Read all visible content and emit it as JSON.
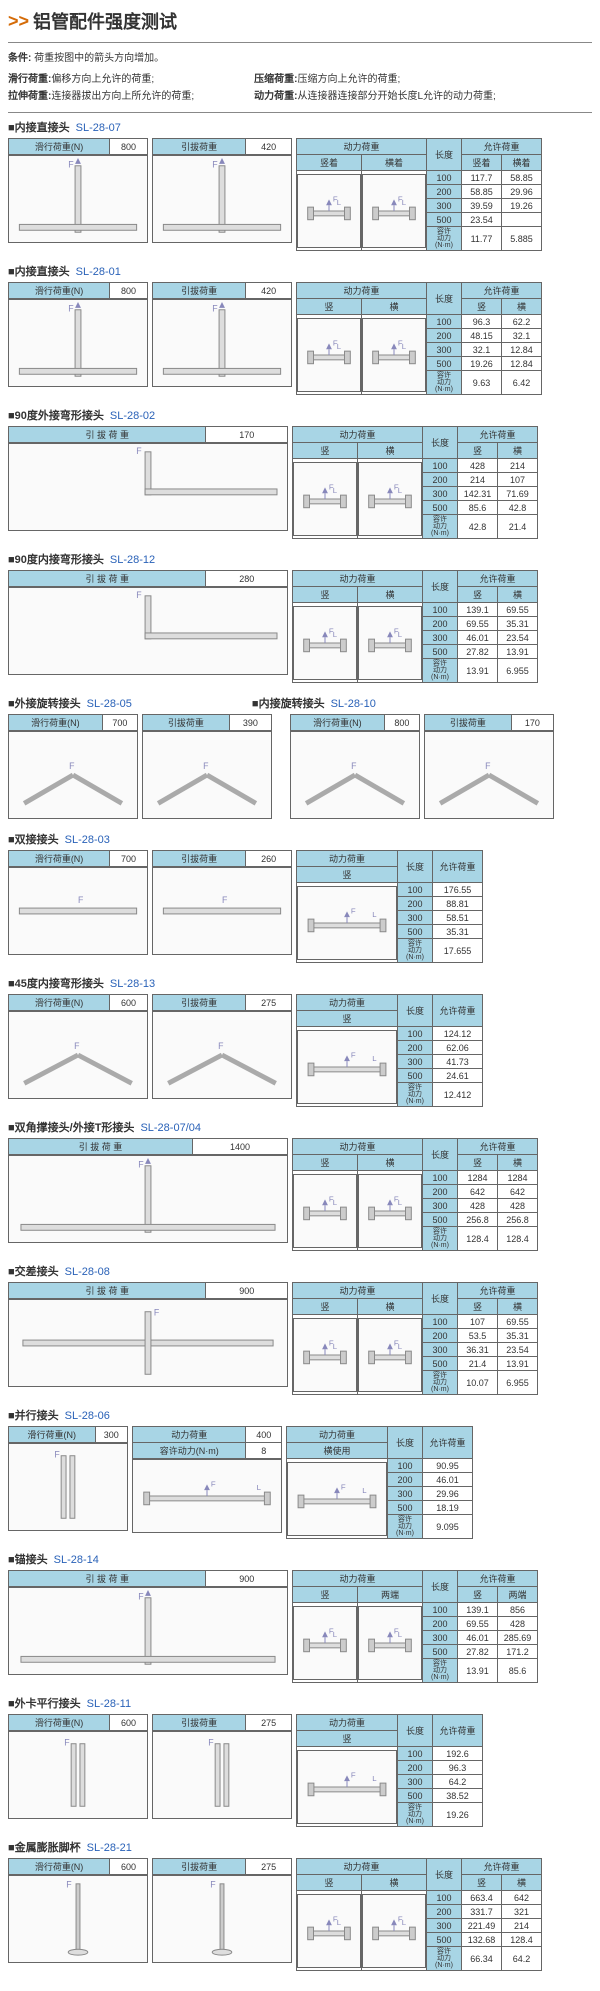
{
  "title": "铝管配件强度测试",
  "condition": {
    "label": "条件:",
    "text": "荷重按图中的箭头方向增加。"
  },
  "definitions": {
    "col1": [
      [
        "滑行荷重:",
        "偏移方向上允许的荷重;"
      ],
      [
        "拉伸荷重:",
        "连接器拔出方向上所允许的荷重;"
      ]
    ],
    "col2": [
      [
        "压缩荷重:",
        "压缩方向上允许的荷重;"
      ],
      [
        "动力荷重:",
        "从连接器连接部分开始长度L允许的动力荷重;"
      ]
    ]
  },
  "sections": [
    {
      "name": "内接直接头",
      "code": "SL-28-07",
      "layout": "A",
      "loads": [
        [
          "滑行荷重(N)",
          "800"
        ],
        [
          "引拔荷重",
          "420"
        ]
      ],
      "dyn": {
        "cols": [
          "竖着",
          "横着"
        ],
        "rows": [
          [
            "100",
            "117.7",
            "58.85"
          ],
          [
            "200",
            "58.85",
            "29.96"
          ],
          [
            "300",
            "39.59",
            "19.26"
          ],
          [
            "500",
            "23.54",
            ""
          ],
          [
            "",
            "11.77",
            "5.885"
          ]
        ]
      }
    },
    {
      "name": "内接直接头",
      "code": "SL-28-01",
      "layout": "A",
      "loads": [
        [
          "滑行荷重(N)",
          "800"
        ],
        [
          "引拔荷重",
          "420"
        ]
      ],
      "dyn": {
        "cols": [
          "竖",
          "横"
        ],
        "rows": [
          [
            "100",
            "96.3",
            "62.2"
          ],
          [
            "200",
            "48.15",
            "32.1"
          ],
          [
            "300",
            "32.1",
            "12.84"
          ],
          [
            "500",
            "19.26",
            "12.84"
          ],
          [
            "",
            "9.63",
            "6.42"
          ]
        ]
      }
    },
    {
      "name": "90度外接弯形接头",
      "code": "SL-28-02",
      "layout": "B",
      "loads": [
        [
          "引 拔 荷 重",
          "170"
        ]
      ],
      "dyn": {
        "cols": [
          "竖",
          "横"
        ],
        "rows": [
          [
            "100",
            "428",
            "214"
          ],
          [
            "200",
            "214",
            "107"
          ],
          [
            "300",
            "142.31",
            "71.69"
          ],
          [
            "500",
            "85.6",
            "42.8"
          ],
          [
            "",
            "42.8",
            "21.4"
          ]
        ]
      }
    },
    {
      "name": "90度内接弯形接头",
      "code": "SL-28-12",
      "layout": "B",
      "loads": [
        [
          "引 拔 荷 重",
          "280"
        ]
      ],
      "dyn": {
        "cols": [
          "竖",
          "横"
        ],
        "rows": [
          [
            "100",
            "139.1",
            "69.55"
          ],
          [
            "200",
            "69.55",
            "35.31"
          ],
          [
            "300",
            "46.01",
            "23.54"
          ],
          [
            "500",
            "27.82",
            "13.91"
          ],
          [
            "",
            "13.91",
            "6.955"
          ]
        ]
      }
    },
    {
      "name": "外接旋转接头",
      "code": "SL-28-05",
      "layout": "C",
      "pair_name": "内接旋转接头",
      "pair_code": "SL-28-10",
      "loads": [
        [
          "滑行荷重(N)",
          "700"
        ],
        [
          "引拔荷重",
          "390"
        ]
      ],
      "loads2": [
        [
          "滑行荷重(N)",
          "800"
        ],
        [
          "引拔荷重",
          "170"
        ]
      ]
    },
    {
      "name": "双接接头",
      "code": "SL-28-03",
      "layout": "D",
      "loads": [
        [
          "滑行荷重(N)",
          "700"
        ],
        [
          "引拔荷重",
          "260"
        ]
      ],
      "dyn": {
        "cols": [
          "竖"
        ],
        "single": true,
        "rows": [
          [
            "100",
            "176.55"
          ],
          [
            "200",
            "88.81"
          ],
          [
            "300",
            "58.51"
          ],
          [
            "500",
            "35.31"
          ],
          [
            "",
            "17.655"
          ]
        ]
      }
    },
    {
      "name": "45度内接弯形接头",
      "code": "SL-28-13",
      "layout": "D",
      "loads": [
        [
          "滑行荷重(N)",
          "600"
        ],
        [
          "引拔荷重",
          "275"
        ]
      ],
      "dyn": {
        "single": true,
        "rows": [
          [
            "100",
            "124.12"
          ],
          [
            "200",
            "62.06"
          ],
          [
            "300",
            "41.73"
          ],
          [
            "500",
            "24.61"
          ],
          [
            "",
            "12.412"
          ]
        ]
      }
    },
    {
      "name": "双角撑接头/外接T形接头",
      "code": "SL-28-07/04",
      "layout": "B",
      "loads": [
        [
          "引 拔 荷 重",
          "1400"
        ]
      ],
      "dyn": {
        "cols": [
          "竖",
          "横"
        ],
        "rows": [
          [
            "100",
            "1284",
            "1284"
          ],
          [
            "200",
            "642",
            "642"
          ],
          [
            "300",
            "428",
            "428"
          ],
          [
            "500",
            "256.8",
            "256.8"
          ],
          [
            "",
            "128.4",
            "128.4"
          ]
        ]
      }
    },
    {
      "name": "交差接头",
      "code": "SL-28-08",
      "layout": "B",
      "loads": [
        [
          "引 拔 荷 重",
          "900"
        ]
      ],
      "dyn": {
        "cols": [
          "竖",
          "横"
        ],
        "rows": [
          [
            "100",
            "107",
            "69.55"
          ],
          [
            "200",
            "53.5",
            "35.31"
          ],
          [
            "300",
            "36.31",
            "23.54"
          ],
          [
            "500",
            "21.4",
            "13.91"
          ],
          [
            "",
            "10.07",
            "6.955"
          ]
        ]
      }
    },
    {
      "name": "并行接头",
      "code": "SL-28-06",
      "layout": "E",
      "loads": [
        [
          "滑行荷重(N)",
          "300"
        ]
      ],
      "extra": [
        [
          "动力荷重",
          "400"
        ],
        [
          "容许动力(N·m)",
          "8"
        ]
      ],
      "dyn": {
        "cols": [
          "横使用"
        ],
        "single": true,
        "rows": [
          [
            "100",
            "90.95"
          ],
          [
            "200",
            "46.01"
          ],
          [
            "300",
            "29.96"
          ],
          [
            "500",
            "18.19"
          ],
          [
            "",
            "9.095"
          ]
        ]
      }
    },
    {
      "name": "锚接头",
      "code": "SL-28-14",
      "layout": "B",
      "loads": [
        [
          "引 拔 荷 重",
          "900"
        ]
      ],
      "dyn": {
        "cols": [
          "竖",
          "两端"
        ],
        "rows": [
          [
            "100",
            "139.1",
            "856"
          ],
          [
            "200",
            "69.55",
            "428"
          ],
          [
            "300",
            "46.01",
            "285.69"
          ],
          [
            "500",
            "27.82",
            "171.2"
          ],
          [
            "",
            "13.91",
            "85.6"
          ]
        ]
      }
    },
    {
      "name": "外卡平行接头",
      "code": "SL-28-11",
      "layout": "D",
      "loads": [
        [
          "滑行荷重(N)",
          "600"
        ],
        [
          "引拔荷重",
          "275"
        ]
      ],
      "dyn": {
        "single": true,
        "rows": [
          [
            "100",
            "192.6"
          ],
          [
            "200",
            "96.3"
          ],
          [
            "300",
            "64.2"
          ],
          [
            "500",
            "38.52"
          ],
          [
            "",
            "19.26"
          ]
        ]
      }
    },
    {
      "name": "金属膨胀脚杯",
      "code": "SL-28-21",
      "layout": "A",
      "loads": [
        [
          "滑行荷重(N)",
          "600"
        ],
        [
          "引拔荷重",
          "275"
        ]
      ],
      "dyn": {
        "cols": [
          "竖",
          "横"
        ],
        "rows": [
          [
            "100",
            "663.4",
            "642"
          ],
          [
            "200",
            "331.7",
            "321"
          ],
          [
            "300",
            "221.49",
            "214"
          ],
          [
            "500",
            "132.68",
            "128.4"
          ],
          [
            "",
            "66.34",
            "64.2"
          ]
        ]
      }
    }
  ],
  "labels": {
    "dyn": "动力荷重",
    "len": "长度",
    "allow": "允许荷重",
    "torque": "容许动力(N·m)"
  }
}
